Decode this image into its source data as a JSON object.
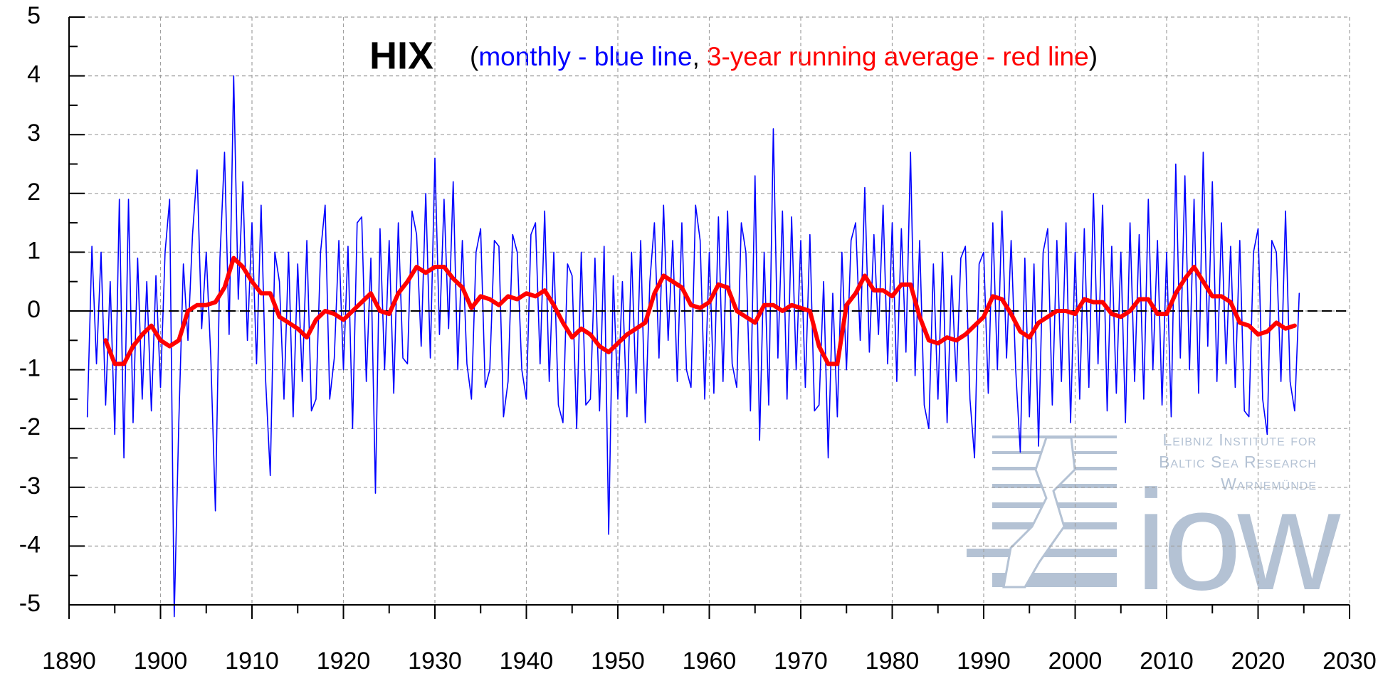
{
  "chart_data": {
    "type": "line",
    "title": "HIX",
    "subtitle_parts": [
      {
        "text": "(",
        "color": "#000000"
      },
      {
        "text": "monthly - blue line",
        "color": "#0000ff"
      },
      {
        "text": ",",
        "color": "#000000"
      },
      {
        "text": "3-year running average - red line",
        "color": "#ff0000"
      },
      {
        "text": ")",
        "color": "#000000"
      }
    ],
    "xlim": [
      1890,
      2030
    ],
    "ylim": [
      -5,
      5
    ],
    "xticks": [
      1890,
      1900,
      1910,
      1920,
      1930,
      1940,
      1950,
      1960,
      1970,
      1980,
      1990,
      2000,
      2010,
      2020,
      2030
    ],
    "xticks_minor": [
      1895,
      1905,
      1915,
      1925,
      1935,
      1945,
      1955,
      1965,
      1975,
      1985,
      1995,
      2005,
      2015,
      2025
    ],
    "yticks": [
      -5,
      -4,
      -3,
      -2,
      -1,
      0,
      1,
      2,
      3,
      4,
      5
    ],
    "yticks_minor": [
      -4.5,
      -3.5,
      -2.5,
      -1.5,
      -0.5,
      0.5,
      1.5,
      2.5,
      3.5,
      4.5
    ],
    "grid": true,
    "zero_line": true,
    "series": [
      {
        "name": "monthly",
        "color": "#0000ff",
        "width": 1.6,
        "x": [
          1892,
          1892.5,
          1893,
          1893.5,
          1894,
          1894.5,
          1895,
          1895.5,
          1896,
          1896.5,
          1897,
          1897.5,
          1898,
          1898.5,
          1899,
          1899.5,
          1900,
          1900.5,
          1901,
          1901.5,
          1902,
          1902.5,
          1903,
          1903.5,
          1904,
          1904.5,
          1905,
          1905.5,
          1906,
          1906.5,
          1907,
          1907.5,
          1908,
          1908.5,
          1909,
          1909.5,
          1910,
          1910.5,
          1911,
          1911.5,
          1912,
          1912.5,
          1913,
          1913.5,
          1914,
          1914.5,
          1915,
          1915.5,
          1916,
          1916.5,
          1917,
          1917.5,
          1918,
          1918.5,
          1919,
          1919.5,
          1920,
          1920.5,
          1921,
          1921.5,
          1922,
          1922.5,
          1923,
          1923.5,
          1924,
          1924.5,
          1925,
          1925.5,
          1926,
          1926.5,
          1927,
          1927.5,
          1928,
          1928.5,
          1929,
          1929.5,
          1930,
          1930.5,
          1931,
          1931.5,
          1932,
          1932.5,
          1933,
          1933.5,
          1934,
          1934.5,
          1935,
          1935.5,
          1936,
          1936.5,
          1937,
          1937.5,
          1938,
          1938.5,
          1939,
          1939.5,
          1940,
          1940.5,
          1941,
          1941.5,
          1942,
          1942.5,
          1943,
          1943.5,
          1944,
          1944.5,
          1945,
          1945.5,
          1946,
          1946.5,
          1947,
          1947.5,
          1948,
          1948.5,
          1949,
          1949.5,
          1950,
          1950.5,
          1951,
          1951.5,
          1952,
          1952.5,
          1953,
          1953.5,
          1954,
          1954.5,
          1955,
          1955.5,
          1956,
          1956.5,
          1957,
          1957.5,
          1958,
          1958.5,
          1959,
          1959.5,
          1960,
          1960.5,
          1961,
          1961.5,
          1962,
          1962.5,
          1963,
          1963.5,
          1964,
          1964.5,
          1965,
          1965.5,
          1966,
          1966.5,
          1967,
          1967.5,
          1968,
          1968.5,
          1969,
          1969.5,
          1970,
          1970.5,
          1971,
          1971.5,
          1972,
          1972.5,
          1973,
          1973.5,
          1974,
          1974.5,
          1975,
          1975.5,
          1976,
          1976.5,
          1977,
          1977.5,
          1978,
          1978.5,
          1979,
          1979.5,
          1980,
          1980.5,
          1981,
          1981.5,
          1982,
          1982.5,
          1983,
          1983.5,
          1984,
          1984.5,
          1985,
          1985.5,
          1986,
          1986.5,
          1987,
          1987.5,
          1988,
          1988.5,
          1989,
          1989.5,
          1990,
          1990.5,
          1991,
          1991.5,
          1992,
          1992.5,
          1993,
          1993.5,
          1994,
          1994.5,
          1995,
          1995.5,
          1996,
          1996.5,
          1997,
          1997.5,
          1998,
          1998.5,
          1999,
          1999.5,
          2000,
          2000.5,
          2001,
          2001.5,
          2002,
          2002.5,
          2003,
          2003.5,
          2004,
          2004.5,
          2005,
          2005.5,
          2006,
          2006.5,
          2007,
          2007.5,
          2008,
          2008.5,
          2009,
          2009.5,
          2010,
          2010.5,
          2011,
          2011.5,
          2012,
          2012.5,
          2013,
          2013.5,
          2014,
          2014.5,
          2015,
          2015.5,
          2016,
          2016.5,
          2017,
          2017.5,
          2018,
          2018.5,
          2019,
          2019.5,
          2020,
          2020.5,
          2021,
          2021.5,
          2022,
          2022.5,
          2023,
          2023.5,
          2024,
          2024.5
        ],
        "values": [
          -1.8,
          1.1,
          -0.9,
          1.0,
          -1.6,
          0.5,
          -2.1,
          1.9,
          -2.5,
          1.9,
          -1.9,
          0.9,
          -1.5,
          0.5,
          -1.7,
          0.6,
          -1.3,
          1.0,
          1.9,
          -5.2,
          -1.9,
          0.8,
          -0.5,
          1.3,
          2.4,
          -0.3,
          1.0,
          -0.8,
          -3.4,
          0.9,
          2.7,
          -0.4,
          4.0,
          0.2,
          2.2,
          -0.5,
          1.5,
          -0.9,
          1.8,
          -1.2,
          -2.8,
          1.0,
          0.5,
          -1.5,
          1.0,
          -1.8,
          0.8,
          -1.2,
          1.2,
          -1.7,
          -1.5,
          1.0,
          1.8,
          -1.5,
          -0.8,
          1.2,
          -1.0,
          1.1,
          -2.0,
          1.5,
          1.6,
          -1.2,
          0.9,
          -3.1,
          1.4,
          -1.0,
          1.2,
          -1.4,
          1.5,
          -0.8,
          -0.9,
          1.7,
          1.3,
          -0.6,
          2.0,
          -0.8,
          2.6,
          -0.4,
          1.9,
          -0.3,
          2.2,
          -1.0,
          1.2,
          -0.9,
          -1.5,
          1.0,
          1.4,
          -1.3,
          -1.0,
          1.2,
          1.1,
          -1.8,
          -1.2,
          1.3,
          1.0,
          -1.0,
          -1.5,
          1.3,
          1.5,
          -0.9,
          1.7,
          -1.2,
          1.0,
          -1.6,
          -1.9,
          0.8,
          0.6,
          -2.0,
          1.0,
          -1.6,
          -1.5,
          0.9,
          -1.7,
          1.1,
          -3.8,
          0.6,
          -1.5,
          0.5,
          -1.8,
          1.0,
          -1.4,
          1.2,
          -1.9,
          0.5,
          1.5,
          -0.8,
          1.8,
          -0.5,
          1.2,
          -1.2,
          1.5,
          -1.0,
          -1.3,
          1.8,
          1.2,
          -1.5,
          1.0,
          -1.4,
          1.6,
          -1.2,
          1.7,
          -0.9,
          -1.3,
          1.5,
          1.0,
          -1.7,
          2.3,
          -2.2,
          1.0,
          -1.6,
          3.1,
          -0.8,
          1.7,
          -1.5,
          1.6,
          -1.0,
          1.2,
          -1.3,
          1.3,
          -1.7,
          -1.6,
          0.5,
          -2.5,
          0.3,
          -1.8,
          1.0,
          -1.0,
          1.2,
          1.5,
          -0.5,
          2.1,
          -0.7,
          1.3,
          -0.4,
          1.8,
          -0.9,
          1.5,
          -1.2,
          1.4,
          -0.7,
          2.7,
          -1.1,
          1.2,
          -1.6,
          -2.0,
          0.8,
          -1.5,
          1.0,
          -1.9,
          0.6,
          -1.2,
          0.9,
          1.1,
          -1.5,
          -2.5,
          0.8,
          1.0,
          -1.4,
          1.5,
          -1.0,
          1.7,
          -0.8,
          1.2,
          -1.0,
          -2.4,
          0.9,
          -1.8,
          0.8,
          -2.3,
          1.0,
          1.4,
          -1.6,
          1.2,
          -1.2,
          1.5,
          -1.9,
          1.0,
          -1.5,
          1.4,
          -1.3,
          2.0,
          -0.9,
          1.8,
          -1.7,
          1.1,
          -1.4,
          1.0,
          -1.9,
          1.5,
          -1.2,
          1.3,
          -1.5,
          1.9,
          -1.0,
          1.2,
          -1.6,
          1.0,
          -1.8,
          2.5,
          -0.8,
          2.3,
          -1.0,
          1.9,
          -1.4,
          2.7,
          -0.6,
          2.2,
          -1.2,
          1.5,
          -0.9,
          1.1,
          -1.3,
          1.2,
          -1.7,
          -1.8,
          1.0,
          1.4,
          -1.5,
          -2.1,
          1.2,
          1.0,
          -1.2,
          1.7,
          -1.2,
          -1.7,
          0.3
        ]
      },
      {
        "name": "3-year running average",
        "color": "#ff0000",
        "width": 6,
        "x": [
          1894,
          1895,
          1896,
          1897,
          1898,
          1899,
          1900,
          1901,
          1902,
          1903,
          1904,
          1905,
          1906,
          1907,
          1908,
          1909,
          1910,
          1911,
          1912,
          1913,
          1914,
          1915,
          1916,
          1917,
          1918,
          1919,
          1920,
          1921,
          1922,
          1923,
          1924,
          1925,
          1926,
          1927,
          1928,
          1929,
          1930,
          1931,
          1932,
          1933,
          1934,
          1935,
          1936,
          1937,
          1938,
          1939,
          1940,
          1941,
          1942,
          1943,
          1944,
          1945,
          1946,
          1947,
          1948,
          1949,
          1950,
          1951,
          1952,
          1953,
          1954,
          1955,
          1956,
          1957,
          1958,
          1959,
          1960,
          1961,
          1962,
          1963,
          1964,
          1965,
          1966,
          1967,
          1968,
          1969,
          1970,
          1971,
          1972,
          1973,
          1974,
          1975,
          1976,
          1977,
          1978,
          1979,
          1980,
          1981,
          1982,
          1983,
          1984,
          1985,
          1986,
          1987,
          1988,
          1989,
          1990,
          1991,
          1992,
          1993,
          1994,
          1995,
          1996,
          1997,
          1998,
          1999,
          2000,
          2001,
          2002,
          2003,
          2004,
          2005,
          2006,
          2007,
          2008,
          2009,
          2010,
          2011,
          2012,
          2013,
          2014,
          2015,
          2016,
          2017,
          2018,
          2019,
          2020,
          2021,
          2022,
          2023,
          2024
        ],
        "values": [
          -0.5,
          -0.9,
          -0.9,
          -0.6,
          -0.4,
          -0.25,
          -0.5,
          -0.6,
          -0.5,
          0.0,
          0.1,
          0.1,
          0.15,
          0.4,
          0.9,
          0.75,
          0.5,
          0.3,
          0.3,
          -0.1,
          -0.2,
          -0.3,
          -0.45,
          -0.15,
          0.0,
          -0.05,
          -0.15,
          0.0,
          0.15,
          0.3,
          0.0,
          -0.05,
          0.3,
          0.5,
          0.75,
          0.65,
          0.75,
          0.75,
          0.55,
          0.4,
          0.05,
          0.25,
          0.2,
          0.1,
          0.25,
          0.2,
          0.3,
          0.25,
          0.35,
          0.1,
          -0.2,
          -0.45,
          -0.3,
          -0.4,
          -0.6,
          -0.7,
          -0.55,
          -0.4,
          -0.3,
          -0.2,
          0.3,
          0.6,
          0.5,
          0.4,
          0.1,
          0.05,
          0.15,
          0.45,
          0.4,
          0.0,
          -0.1,
          -0.2,
          0.1,
          0.1,
          0.0,
          0.1,
          0.05,
          0.0,
          -0.6,
          -0.9,
          -0.9,
          0.1,
          0.3,
          0.6,
          0.35,
          0.35,
          0.25,
          0.45,
          0.45,
          -0.1,
          -0.5,
          -0.55,
          -0.45,
          -0.5,
          -0.4,
          -0.25,
          -0.1,
          0.25,
          0.2,
          -0.05,
          -0.35,
          -0.45,
          -0.2,
          -0.1,
          0.0,
          0.0,
          -0.05,
          0.2,
          0.15,
          0.15,
          -0.05,
          -0.1,
          0.0,
          0.2,
          0.2,
          -0.05,
          -0.05,
          0.3,
          0.55,
          0.75,
          0.5,
          0.25,
          0.25,
          0.15,
          -0.2,
          -0.25,
          -0.4,
          -0.35,
          -0.2,
          -0.3,
          -0.25
        ]
      }
    ]
  },
  "logo": {
    "lines": [
      "Leibniz Institute for",
      "Baltic Sea Research",
      "Warnemünde"
    ],
    "mark": "iow"
  }
}
